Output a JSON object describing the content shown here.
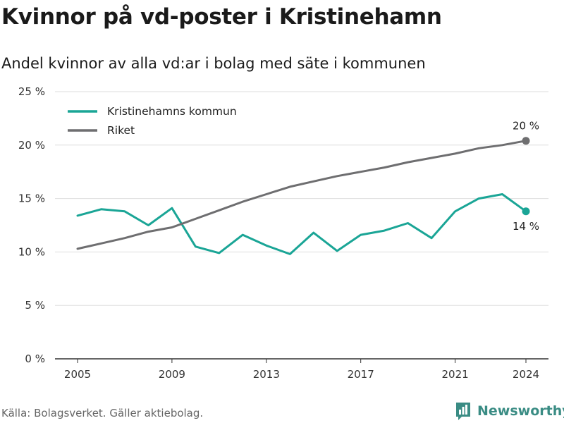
{
  "title": "Kvinnor på vd-poster i Kristinehamn",
  "subtitle": "Andel kvinnor av alla vd:ar i bolag med säte i kommunen",
  "source": "Källa: Bolagsverket. Gäller aktiebolag.",
  "brand": {
    "name": "Newsworthy",
    "logo_icon": "bar-chart-bubble-icon",
    "color": "#3a8c84"
  },
  "chart_data": {
    "type": "line",
    "x": [
      2005,
      2006,
      2007,
      2008,
      2009,
      2010,
      2011,
      2012,
      2013,
      2014,
      2015,
      2016,
      2017,
      2018,
      2019,
      2020,
      2021,
      2022,
      2023,
      2024
    ],
    "xticks": [
      2005,
      2009,
      2013,
      2017,
      2021,
      2024
    ],
    "xtick_labels": [
      "2005",
      "2009",
      "2013",
      "2017",
      "2021",
      "2024"
    ],
    "ylim": [
      0,
      25
    ],
    "yticks": [
      0,
      5,
      10,
      15,
      20,
      25
    ],
    "ytick_labels": [
      "0 %",
      "5 %",
      "10 %",
      "15 %",
      "20 %",
      "25 %"
    ],
    "grid": true,
    "legend_position": "top-left",
    "series": [
      {
        "name": "Kristinehamns kommun",
        "color": "#1aa596",
        "values": [
          13.4,
          14.0,
          13.8,
          12.5,
          14.1,
          10.5,
          9.9,
          11.6,
          10.6,
          9.8,
          11.8,
          10.1,
          11.6,
          12.0,
          12.7,
          11.3,
          13.8,
          15.0,
          15.4,
          13.8
        ],
        "end_label": "14 %"
      },
      {
        "name": "Riket",
        "color": "#6e6e70",
        "values": [
          10.3,
          10.8,
          11.3,
          11.9,
          12.3,
          13.1,
          13.9,
          14.7,
          15.4,
          16.1,
          16.6,
          17.1,
          17.5,
          17.9,
          18.4,
          18.8,
          19.2,
          19.7,
          20.0,
          20.4
        ],
        "end_label": "20 %"
      }
    ]
  }
}
